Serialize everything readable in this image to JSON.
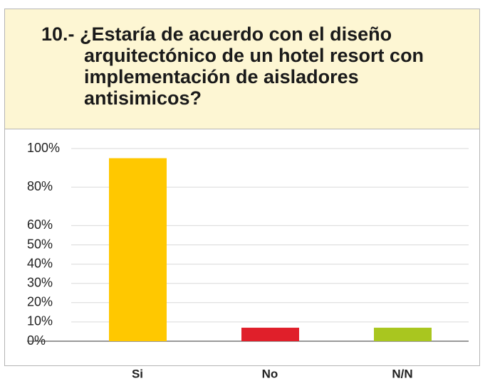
{
  "chart_data": {
    "type": "bar",
    "title": "10.- ¿Estaría de acuerdo con el diseño arquitectónico de un hotel resort con implementación de aisladores antisimicos?",
    "categories": [
      "Si",
      "No",
      "N/N"
    ],
    "values": [
      95,
      7,
      7
    ],
    "colors": [
      "#ffc800",
      "#e01f2a",
      "#a9c61f"
    ],
    "ylim": [
      0,
      100
    ],
    "yticks": [
      {
        "value": 0,
        "label": "0%"
      },
      {
        "value": 10,
        "label": "10%"
      },
      {
        "value": 20,
        "label": "20%"
      },
      {
        "value": 30,
        "label": "30%"
      },
      {
        "value": 40,
        "label": "40%"
      },
      {
        "value": 50,
        "label": "50%"
      },
      {
        "value": 60,
        "label": "60%"
      },
      {
        "value": 80,
        "label": "80%"
      },
      {
        "value": 100,
        "label": "100%"
      }
    ],
    "grid": true
  }
}
